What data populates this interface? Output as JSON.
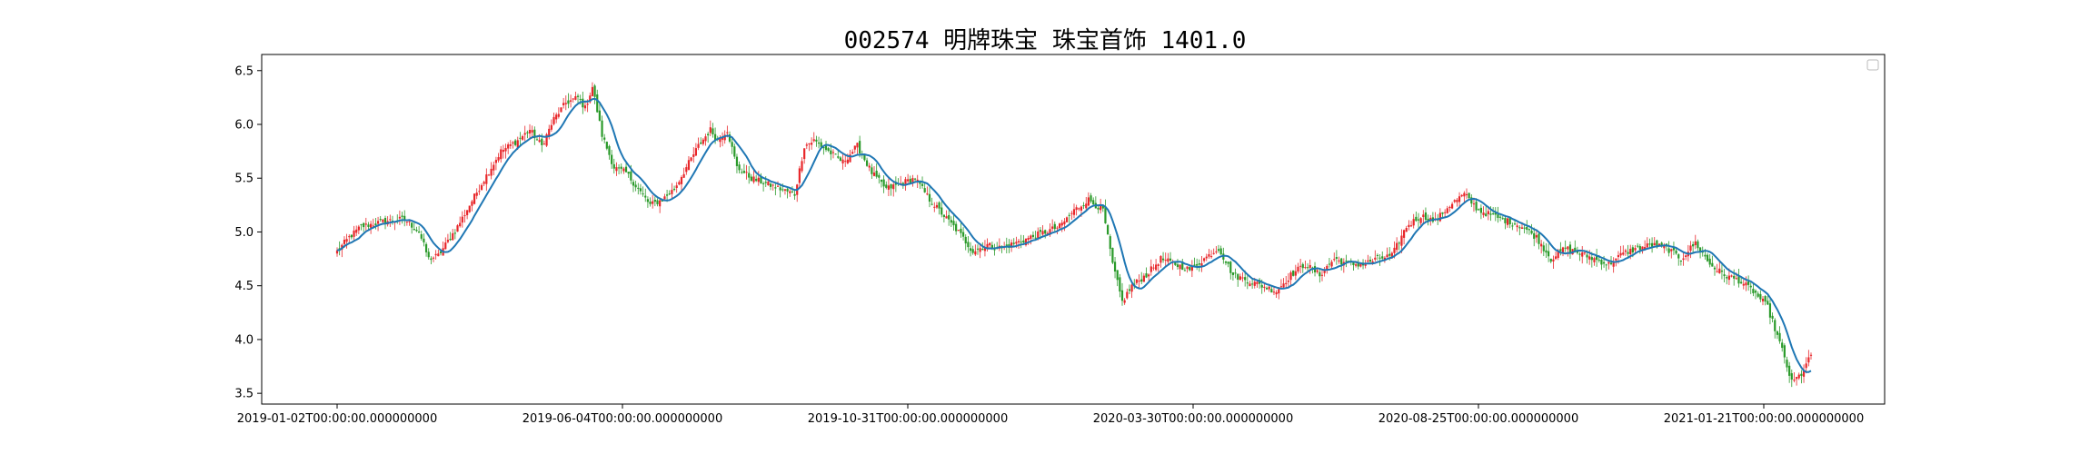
{
  "title": "002574 明牌珠宝 珠宝首饰 1401.0",
  "chart_data": {
    "type": "candlestick",
    "title": "002574 明牌珠宝 珠宝首饰 1401.0",
    "xlabel": "",
    "ylabel": "",
    "x_tick_labels": [
      "2019-01-02T00:00:00.000000000",
      "2019-06-04T00:00:00.000000000",
      "2019-10-31T00:00:00.000000000",
      "2020-03-30T00:00:00.000000000",
      "2020-08-25T00:00:00.000000000",
      "2021-01-21T00:00:00.000000000"
    ],
    "y_ticks": [
      3.5,
      4.0,
      4.5,
      5.0,
      5.5,
      6.0,
      6.5
    ],
    "ylim": [
      3.4,
      6.65
    ],
    "legend": "top-right (empty)",
    "grid": false,
    "up_color": "#e8262a",
    "down_color": "#2a9a2a",
    "ma_color": "#1f77b4",
    "approx_close_path": [
      [
        0,
        4.82
      ],
      [
        5,
        4.95
      ],
      [
        10,
        5.05
      ],
      [
        20,
        5.1
      ],
      [
        28,
        5.12
      ],
      [
        34,
        5.0
      ],
      [
        38,
        4.75
      ],
      [
        42,
        4.78
      ],
      [
        50,
        5.05
      ],
      [
        60,
        5.45
      ],
      [
        68,
        5.75
      ],
      [
        75,
        5.85
      ],
      [
        80,
        5.95
      ],
      [
        85,
        5.8
      ],
      [
        90,
        6.05
      ],
      [
        95,
        6.2
      ],
      [
        100,
        6.25
      ],
      [
        103,
        6.15
      ],
      [
        106,
        6.35
      ],
      [
        110,
        5.9
      ],
      [
        115,
        5.6
      ],
      [
        120,
        5.55
      ],
      [
        125,
        5.4
      ],
      [
        130,
        5.25
      ],
      [
        135,
        5.3
      ],
      [
        140,
        5.4
      ],
      [
        145,
        5.6
      ],
      [
        150,
        5.8
      ],
      [
        155,
        5.95
      ],
      [
        158,
        5.85
      ],
      [
        162,
        5.95
      ],
      [
        166,
        5.6
      ],
      [
        172,
        5.5
      ],
      [
        178,
        5.45
      ],
      [
        184,
        5.4
      ],
      [
        190,
        5.35
      ],
      [
        194,
        5.8
      ],
      [
        198,
        5.85
      ],
      [
        204,
        5.75
      ],
      [
        210,
        5.65
      ],
      [
        216,
        5.8
      ],
      [
        222,
        5.55
      ],
      [
        228,
        5.4
      ],
      [
        234,
        5.45
      ],
      [
        240,
        5.5
      ],
      [
        246,
        5.3
      ],
      [
        252,
        5.15
      ],
      [
        258,
        5.0
      ],
      [
        264,
        4.82
      ],
      [
        270,
        4.88
      ],
      [
        276,
        4.85
      ],
      [
        282,
        4.9
      ],
      [
        288,
        4.95
      ],
      [
        294,
        5.0
      ],
      [
        300,
        5.05
      ],
      [
        306,
        5.2
      ],
      [
        312,
        5.3
      ],
      [
        318,
        5.2
      ],
      [
        322,
        4.7
      ],
      [
        326,
        4.35
      ],
      [
        330,
        4.5
      ],
      [
        336,
        4.6
      ],
      [
        342,
        4.75
      ],
      [
        348,
        4.7
      ],
      [
        354,
        4.65
      ],
      [
        360,
        4.75
      ],
      [
        366,
        4.85
      ],
      [
        372,
        4.6
      ],
      [
        378,
        4.55
      ],
      [
        384,
        4.5
      ],
      [
        390,
        4.45
      ],
      [
        396,
        4.6
      ],
      [
        402,
        4.7
      ],
      [
        408,
        4.6
      ],
      [
        414,
        4.75
      ],
      [
        420,
        4.7
      ],
      [
        426,
        4.7
      ],
      [
        432,
        4.75
      ],
      [
        438,
        4.78
      ],
      [
        444,
        5.05
      ],
      [
        450,
        5.15
      ],
      [
        456,
        5.1
      ],
      [
        462,
        5.25
      ],
      [
        468,
        5.35
      ],
      [
        474,
        5.2
      ],
      [
        480,
        5.15
      ],
      [
        486,
        5.1
      ],
      [
        492,
        5.05
      ],
      [
        498,
        4.95
      ],
      [
        504,
        4.75
      ],
      [
        510,
        4.85
      ],
      [
        516,
        4.8
      ],
      [
        522,
        4.75
      ],
      [
        528,
        4.7
      ],
      [
        534,
        4.8
      ],
      [
        540,
        4.85
      ],
      [
        546,
        4.88
      ],
      [
        552,
        4.85
      ],
      [
        558,
        4.75
      ],
      [
        564,
        4.9
      ],
      [
        570,
        4.7
      ],
      [
        576,
        4.6
      ],
      [
        582,
        4.55
      ],
      [
        588,
        4.45
      ],
      [
        594,
        4.3
      ],
      [
        600,
        3.9
      ],
      [
        604,
        3.6
      ],
      [
        608,
        3.68
      ],
      [
        612,
        3.85
      ]
    ]
  }
}
